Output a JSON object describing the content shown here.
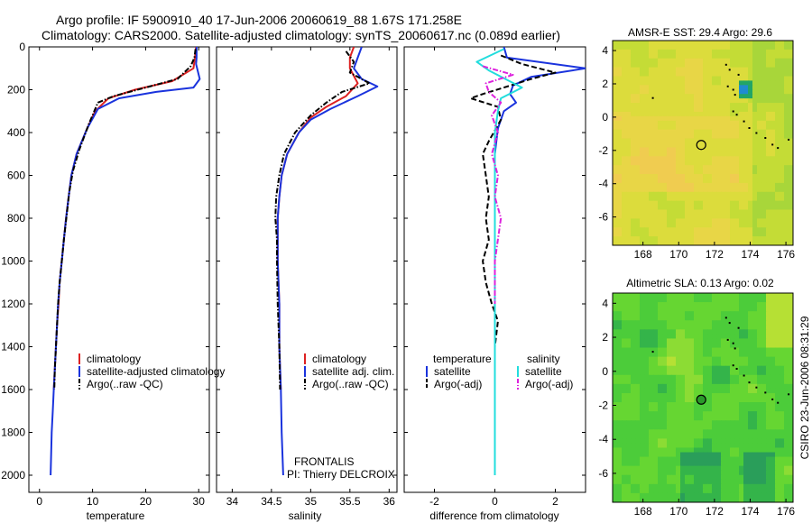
{
  "header": {
    "title_line1": "Argo profile: IF 5900910_40 17-Jun-2006 20060619_88 1.67S 171.258E",
    "title_line2": "Climatology: CARS2000. Satellite-adjusted climatology: synTS_20060617.nc (0.089d earlier)"
  },
  "side_label": "CSIRO 23-Jun-2006 08:31:29",
  "colors": {
    "climatology": "#dd2222",
    "satellite": "#1a33dd",
    "argo": "#000000",
    "salinity_satellite": "#22dddd",
    "salinity_argo": "#dd22dd"
  },
  "chart_data": [
    {
      "type": "line",
      "id": "temperature",
      "xlabel": "temperature",
      "ylabel": "",
      "xlim": [
        -2,
        32
      ],
      "ylim": [
        0,
        2080
      ],
      "y_reversed": true,
      "xticks": [
        0,
        10,
        20,
        30
      ],
      "yticks": [
        0,
        200,
        400,
        600,
        800,
        1000,
        1200,
        1400,
        1600,
        1800,
        2000
      ],
      "legend": {
        "placement": "lower-middle",
        "entries": [
          "climatology",
          "satellite-adjusted climatology",
          "Argo(..raw -QC)"
        ]
      },
      "series": [
        {
          "name": "climatology",
          "color": "#dd2222",
          "dash": "solid",
          "points": [
            [
              29.5,
              0
            ],
            [
              29.3,
              50
            ],
            [
              29.0,
              100
            ],
            [
              25,
              160
            ],
            [
              18,
              200
            ],
            [
              13,
              240
            ],
            [
              10.5,
              300
            ],
            [
              9,
              380
            ],
            [
              7,
              500
            ],
            [
              6,
              600
            ],
            [
              5.5,
              700
            ],
            [
              5,
              800
            ],
            [
              4.6,
              900
            ],
            [
              4.2,
              1000
            ],
            [
              3.8,
              1100
            ],
            [
              3.6,
              1200
            ],
            [
              3.3,
              1300
            ],
            [
              3.1,
              1400
            ],
            [
              2.9,
              1500
            ],
            [
              2.7,
              1600
            ]
          ]
        },
        {
          "name": "satellite-adjusted climatology",
          "color": "#1a33dd",
          "dash": "solid",
          "points": [
            [
              29.6,
              0
            ],
            [
              29.6,
              50
            ],
            [
              29.5,
              80
            ],
            [
              30.2,
              150
            ],
            [
              29,
              190
            ],
            [
              22,
              210
            ],
            [
              15,
              240
            ],
            [
              11,
              290
            ],
            [
              9,
              380
            ],
            [
              7,
              500
            ],
            [
              6,
              600
            ],
            [
              5.5,
              700
            ],
            [
              5,
              800
            ],
            [
              4.6,
              900
            ],
            [
              4.2,
              1000
            ],
            [
              3.8,
              1100
            ],
            [
              3.5,
              1200
            ],
            [
              3.3,
              1300
            ],
            [
              3.1,
              1400
            ],
            [
              2.9,
              1500
            ],
            [
              2.7,
              1600
            ],
            [
              2.5,
              1700
            ],
            [
              2.3,
              1800
            ],
            [
              2.2,
              1900
            ],
            [
              2.1,
              2000
            ]
          ]
        },
        {
          "name": "Argo(..raw -QC)",
          "color": "#000000",
          "dash": "dashdot",
          "points": [
            [
              29.4,
              10
            ],
            [
              29.2,
              50
            ],
            [
              28.5,
              90
            ],
            [
              26,
              150
            ],
            [
              20,
              190
            ],
            [
              14,
              230
            ],
            [
              11,
              260
            ],
            [
              9.3,
              360
            ],
            [
              7.5,
              480
            ],
            [
              6.3,
              580
            ],
            [
              5.6,
              680
            ],
            [
              5.1,
              790
            ],
            [
              4.6,
              900
            ],
            [
              4.2,
              1000
            ],
            [
              3.8,
              1100
            ],
            [
              3.5,
              1200
            ],
            [
              3.3,
              1300
            ],
            [
              3.1,
              1400
            ],
            [
              2.9,
              1500
            ],
            [
              2.8,
              1600
            ]
          ]
        }
      ]
    },
    {
      "type": "line",
      "id": "salinity",
      "xlabel": "salinity",
      "ylabel": "",
      "xlim": [
        33.8,
        36.1
      ],
      "ylim": [
        0,
        2080
      ],
      "y_reversed": true,
      "xticks": [
        34,
        34.5,
        35,
        35.5,
        36
      ],
      "legend": {
        "placement": "lower-middle",
        "entries": [
          "climatology",
          "satellite adj. clim.",
          "Argo(..raw -QC)"
        ]
      },
      "annotations": [
        "FRONTALIS",
        "PI: Thierry DELCROIX"
      ],
      "series": [
        {
          "name": "climatology",
          "color": "#dd2222",
          "dash": "solid",
          "points": [
            [
              35.55,
              0
            ],
            [
              35.5,
              50
            ],
            [
              35.5,
              100
            ],
            [
              35.6,
              170
            ],
            [
              35.45,
              230
            ],
            [
              35.2,
              280
            ],
            [
              35.0,
              330
            ],
            [
              34.85,
              400
            ],
            [
              34.7,
              500
            ],
            [
              34.63,
              600
            ],
            [
              34.6,
              700
            ],
            [
              34.58,
              800
            ],
            [
              34.58,
              1000
            ],
            [
              34.6,
              1200
            ],
            [
              34.6,
              1400
            ],
            [
              34.62,
              1600
            ]
          ]
        },
        {
          "name": "satellite adj. clim.",
          "color": "#1a33dd",
          "dash": "solid",
          "points": [
            [
              35.65,
              0
            ],
            [
              35.6,
              50
            ],
            [
              35.55,
              100
            ],
            [
              35.65,
              150
            ],
            [
              35.85,
              185
            ],
            [
              35.6,
              230
            ],
            [
              35.25,
              290
            ],
            [
              35.0,
              340
            ],
            [
              34.85,
              400
            ],
            [
              34.7,
              500
            ],
            [
              34.63,
              600
            ],
            [
              34.6,
              700
            ],
            [
              34.58,
              800
            ],
            [
              34.58,
              1000
            ],
            [
              34.6,
              1200
            ],
            [
              34.6,
              1400
            ],
            [
              34.62,
              1600
            ],
            [
              34.63,
              1800
            ],
            [
              34.65,
              2000
            ]
          ]
        },
        {
          "name": "Argo(..raw -QC)",
          "color": "#000000",
          "dash": "dashdot",
          "points": [
            [
              35.45,
              20
            ],
            [
              35.55,
              70
            ],
            [
              35.5,
              120
            ],
            [
              35.75,
              170
            ],
            [
              35.4,
              210
            ],
            [
              35.2,
              260
            ],
            [
              35.0,
              320
            ],
            [
              34.8,
              400
            ],
            [
              34.66,
              500
            ],
            [
              34.6,
              600
            ],
            [
              34.56,
              700
            ],
            [
              34.55,
              800
            ],
            [
              34.57,
              900
            ],
            [
              34.57,
              1000
            ],
            [
              34.58,
              1200
            ],
            [
              34.6,
              1400
            ],
            [
              34.61,
              1600
            ]
          ]
        }
      ]
    },
    {
      "type": "line",
      "id": "difference",
      "xlabel": "difference from climatology",
      "ylabel": "",
      "xlim": [
        -3,
        3
      ],
      "ylim": [
        0,
        2080
      ],
      "y_reversed": true,
      "xticks": [
        -2,
        0,
        2
      ],
      "legend": {
        "placement": "upper-middle",
        "entries": [
          "temperature",
          "satellite",
          "Argo(-adj)",
          "salinity",
          "satellite",
          "Argo(-adj)"
        ]
      },
      "series": [
        {
          "name": "temperature satellite",
          "color": "#1a33dd",
          "dash": "solid",
          "points": [
            [
              0.3,
              0
            ],
            [
              0.4,
              50
            ],
            [
              3,
              100
            ],
            [
              1.2,
              140
            ],
            [
              0.6,
              180
            ],
            [
              0.5,
              220
            ],
            [
              0.7,
              260
            ],
            [
              0.3,
              300
            ],
            [
              0.1,
              380
            ],
            [
              0,
              500
            ],
            [
              0,
              800
            ],
            [
              0,
              1200
            ],
            [
              0,
              1600
            ],
            [
              0,
              2000
            ]
          ]
        },
        {
          "name": "temperature Argo(-adj)",
          "color": "#000000",
          "dash": "dashed",
          "points": [
            [
              0.2,
              40
            ],
            [
              0.9,
              80
            ],
            [
              2,
              120
            ],
            [
              1.2,
              150
            ],
            [
              0.3,
              190
            ],
            [
              -0.4,
              220
            ],
            [
              -0.8,
              240
            ],
            [
              0.1,
              280
            ],
            [
              0.2,
              340
            ],
            [
              -0.2,
              440
            ],
            [
              -0.4,
              500
            ],
            [
              -0.3,
              600
            ],
            [
              -0.2,
              700
            ],
            [
              -0.3,
              800
            ],
            [
              -0.2,
              900
            ],
            [
              -0.4,
              1000
            ],
            [
              -0.3,
              1100
            ],
            [
              -0.1,
              1200
            ],
            [
              0.1,
              1280
            ],
            [
              0,
              1400
            ],
            [
              0,
              1600
            ]
          ]
        },
        {
          "name": "salinity satellite",
          "color": "#22dddd",
          "dash": "solid",
          "points": [
            [
              0.3,
              10
            ],
            [
              -0.6,
              70
            ],
            [
              -0.2,
              110
            ],
            [
              0.9,
              190
            ],
            [
              0.2,
              240
            ],
            [
              0.1,
              300
            ],
            [
              0,
              400
            ],
            [
              0,
              800
            ],
            [
              0,
              1200
            ],
            [
              0,
              1600
            ],
            [
              0,
              2000
            ]
          ]
        },
        {
          "name": "salinity Argo(-adj)",
          "color": "#dd22dd",
          "dash": "dashdot",
          "points": [
            [
              -0.4,
              90
            ],
            [
              0.6,
              130
            ],
            [
              -0.3,
              170
            ],
            [
              -0.2,
              210
            ],
            [
              0.2,
              260
            ],
            [
              -0.1,
              320
            ],
            [
              0.1,
              400
            ],
            [
              -0.1,
              500
            ],
            [
              0.1,
              600
            ],
            [
              0,
              700
            ],
            [
              0.2,
              800
            ],
            [
              0,
              1000
            ],
            [
              0,
              1200
            ]
          ]
        }
      ]
    },
    {
      "type": "heatmap",
      "id": "sst_map",
      "title": "AMSR-E SST: 29.4 Argo: 29.6",
      "xlim": [
        166.3,
        176.4
      ],
      "ylim": [
        -7.7,
        4.6
      ],
      "xticks": [
        168,
        170,
        172,
        174,
        176
      ],
      "yticks": [
        -6,
        -4,
        -2,
        0,
        2,
        4
      ],
      "marker": {
        "x": 171.26,
        "y": -1.67
      }
    },
    {
      "type": "heatmap",
      "id": "sla_map",
      "title": "Altimetric SLA: 0.13 Argo: 0.02",
      "xlim": [
        166.3,
        176.4
      ],
      "ylim": [
        -7.7,
        4.6
      ],
      "xticks": [
        168,
        170,
        172,
        174,
        176
      ],
      "yticks": [
        -6,
        -4,
        -2,
        0,
        2,
        4
      ],
      "marker": {
        "x": 171.26,
        "y": -1.67
      }
    }
  ]
}
